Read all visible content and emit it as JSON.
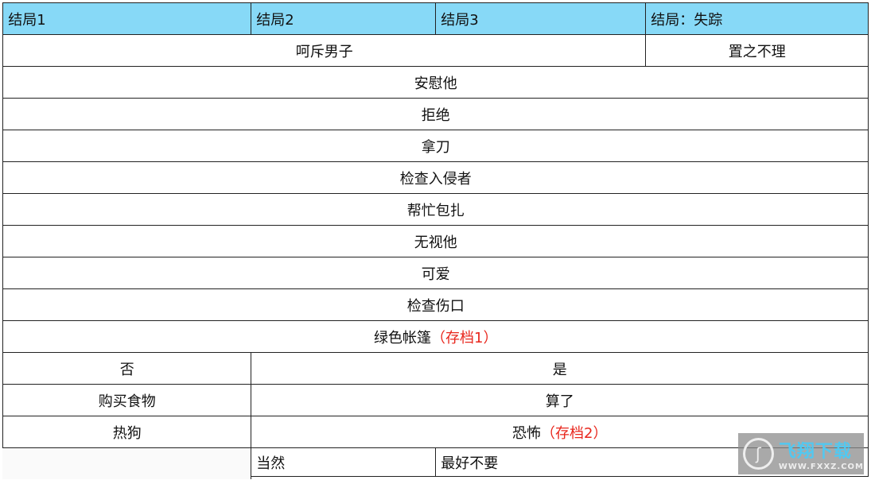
{
  "header": [
    "结局1",
    "结局2",
    "结局3",
    "结局：失踪"
  ],
  "row_scold": {
    "left": "呵斥男子",
    "right": "置之不理"
  },
  "full_rows": [
    "安慰他",
    "拒绝",
    "拿刀",
    "检查入侵者",
    "帮忙包扎",
    "无视他",
    "可爱",
    "检查伤口"
  ],
  "save1": {
    "text": "绿色帐篷",
    "tag": "（存档1）"
  },
  "row_yesno": {
    "left": "否",
    "right": "是"
  },
  "row_food": {
    "left": "购买食物",
    "right": "算了"
  },
  "row_hotdog": {
    "left": "热狗",
    "right": "恐怖",
    "tag": "（存档2）"
  },
  "row_last": {
    "mid": "当然",
    "right": "最好不要"
  },
  "watermark": {
    "name": "飞翔下载",
    "url": "WWW.FXXZ.COM"
  },
  "colors": {
    "header_bg": "#87d9f7",
    "save_tag": "#e8261c"
  }
}
